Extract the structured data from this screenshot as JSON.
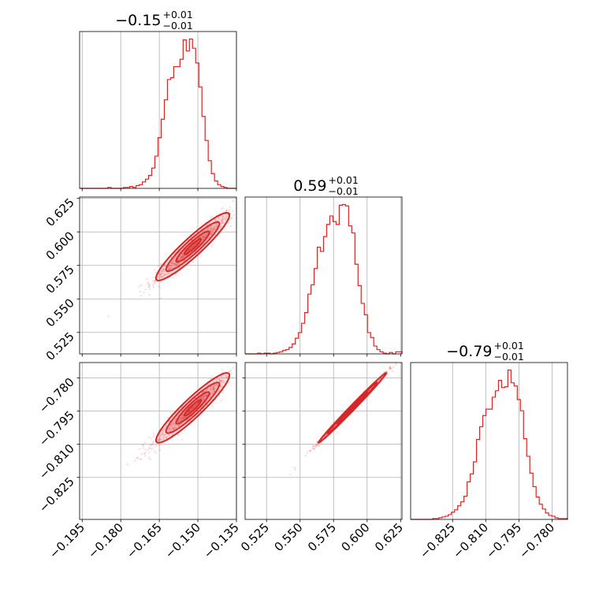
{
  "chart_data": {
    "type": "corner",
    "color": "#d62728",
    "grid": true,
    "params": [
      {
        "title": "−0.15",
        "plus": "+0.01",
        "minus": "−0.01",
        "median": -0.152,
        "sigma": 0.0065,
        "range": [
          -0.196,
          -0.135
        ],
        "ticks": [
          -0.195,
          -0.18,
          -0.165,
          -0.15,
          -0.135
        ],
        "tick_labels": [
          "−0.195",
          "−0.180",
          "−0.165",
          "−0.150",
          "−0.135"
        ]
      },
      {
        "title": "0.59",
        "plus": "+0.01",
        "minus": "−0.01",
        "median": 0.589,
        "sigma": 0.0115,
        "range": [
          0.509,
          0.626
        ],
        "ticks": [
          0.525,
          0.55,
          0.575,
          0.6,
          0.625
        ],
        "tick_labels": [
          "0.525",
          "0.550",
          "0.575",
          "0.600",
          "0.625"
        ]
      },
      {
        "title": "−0.79",
        "plus": "+0.01",
        "minus": "−0.01",
        "median": -0.7935,
        "sigma": 0.0072,
        "range": [
          -0.844,
          -0.773
        ],
        "ticks": [
          -0.825,
          -0.81,
          -0.795,
          -0.78
        ],
        "tick_labels": [
          "−0.825",
          "−0.810",
          "−0.795",
          "−0.780"
        ]
      }
    ],
    "histograms": [
      [
        0,
        0,
        0,
        0,
        0,
        0,
        0,
        0,
        0,
        1,
        0,
        0,
        0,
        0,
        1,
        1,
        2,
        1,
        3,
        4,
        7,
        10,
        14,
        22,
        35,
        55,
        75,
        96,
        118,
        120,
        132,
        132,
        140,
        161,
        149,
        162,
        152,
        136,
        110,
        78,
        52,
        30,
        16,
        8,
        4,
        2,
        1,
        0,
        0,
        0
      ],
      [
        0,
        0,
        0,
        0,
        1,
        0,
        1,
        1,
        0,
        1,
        2,
        3,
        5,
        6,
        9,
        14,
        22,
        30,
        43,
        58,
        84,
        97,
        120,
        150,
        144,
        165,
        182,
        194,
        186,
        182,
        209,
        210,
        208,
        180,
        170,
        126,
        96,
        71,
        55,
        30,
        23,
        11,
        6,
        3,
        1,
        0,
        2,
        0,
        3,
        3
      ],
      [
        0,
        0,
        0,
        0,
        0,
        0,
        0,
        1,
        1,
        2,
        3,
        4,
        6,
        9,
        12,
        17,
        22,
        29,
        47,
        57,
        72,
        100,
        116,
        130,
        138,
        138,
        153,
        161,
        174,
        165,
        166,
        187,
        171,
        167,
        150,
        136,
        101,
        79,
        58,
        41,
        28,
        19,
        13,
        8,
        5,
        4,
        2,
        1,
        1,
        1
      ]
    ]
  }
}
